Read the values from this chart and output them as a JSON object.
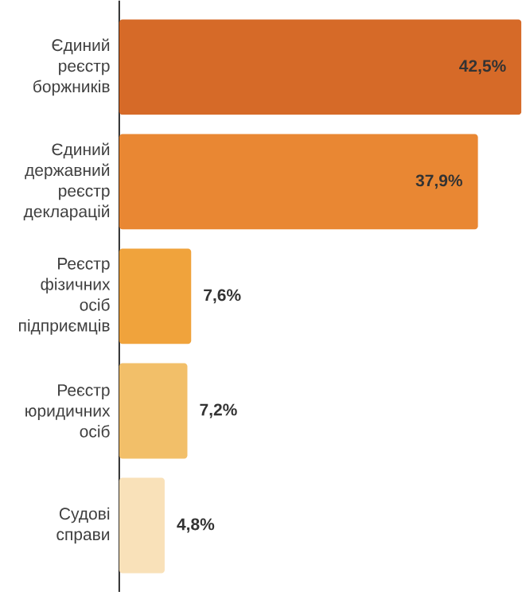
{
  "chart_data": {
    "type": "bar",
    "orientation": "horizontal",
    "categories": [
      "Єдиний реєстр боржників",
      "Єдиний державний реєстр декларацій",
      "Реєстр фізичних осіб підприємців",
      "Реєстр юридичних осіб",
      "Судові справи"
    ],
    "values": [
      42.5,
      37.9,
      7.6,
      7.2,
      4.8
    ],
    "value_labels": [
      "42,5%",
      "37,9%",
      "7,6%",
      "7,2%",
      "4,8%"
    ],
    "colors": [
      "#d66a28",
      "#e98733",
      "#f0a33c",
      "#f2bf69",
      "#f9e1b9"
    ]
  }
}
